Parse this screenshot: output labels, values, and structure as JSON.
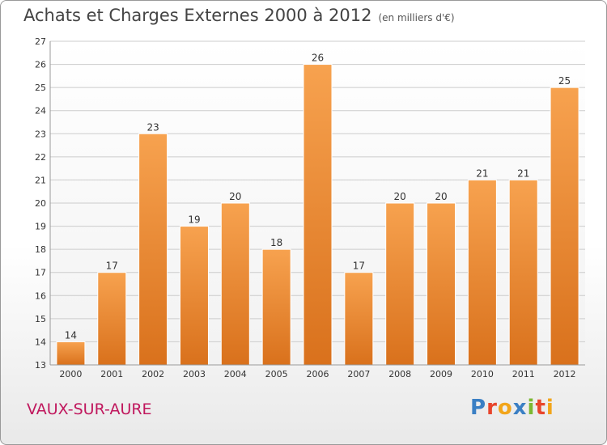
{
  "page": {
    "title": "Achats et Charges Externes 2000 à 2012",
    "subtitle": "(en milliers d'€)",
    "place": "VAUX-SUR-AURE",
    "logo": "Proxiti",
    "logo_colors": [
      "#3a7fc4",
      "#e8452c",
      "#f2a51a",
      "#3a7fc4",
      "#7cb832",
      "#e8452c",
      "#f2a51a"
    ]
  },
  "colors": {
    "bar_top": "#f7a24f",
    "bar_bottom": "#d9711c",
    "bar_edge": "#ffffff",
    "grid": "#cccccc",
    "axis_text": "#333333"
  },
  "chart_data": {
    "type": "bar",
    "title": "Achats et Charges Externes 2000 à 2012",
    "subtitle": "(en milliers d'€)",
    "categories": [
      "2000",
      "2001",
      "2002",
      "2003",
      "2004",
      "2005",
      "2006",
      "2007",
      "2008",
      "2009",
      "2010",
      "2011",
      "2012"
    ],
    "values": [
      14,
      17,
      23,
      19,
      20,
      18,
      26,
      17,
      20,
      20,
      21,
      21,
      25
    ],
    "ylim": [
      13,
      27
    ],
    "yticks": [
      13,
      14,
      15,
      16,
      17,
      18,
      19,
      20,
      21,
      22,
      23,
      24,
      25,
      26,
      27
    ],
    "grid": true
  }
}
